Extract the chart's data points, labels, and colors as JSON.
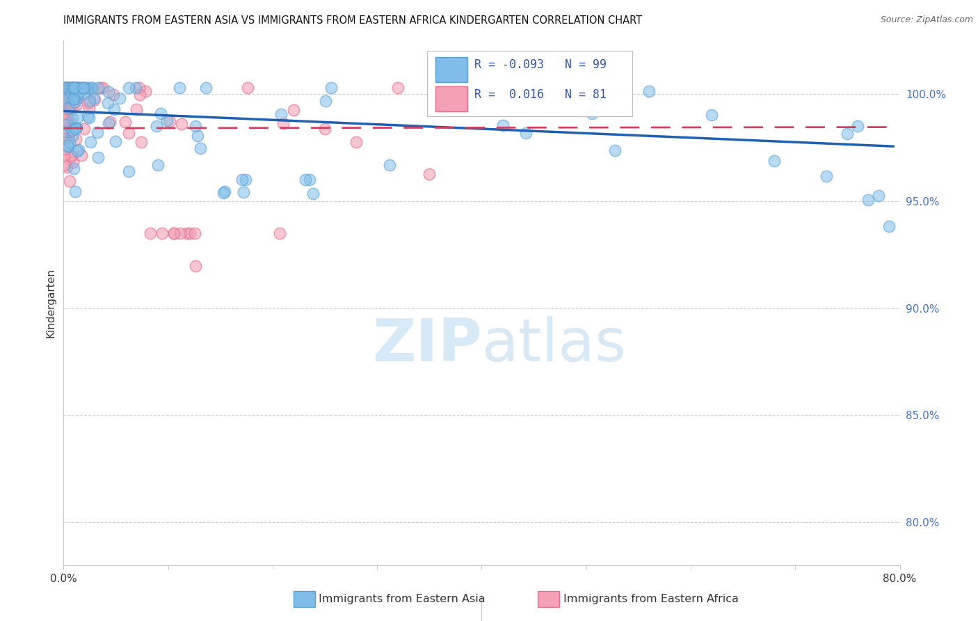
{
  "title": "IMMIGRANTS FROM EASTERN ASIA VS IMMIGRANTS FROM EASTERN AFRICA KINDERGARTEN CORRELATION CHART",
  "source": "Source: ZipAtlas.com",
  "ylabel": "Kindergarten",
  "legend_blue_label": "Immigrants from Eastern Asia",
  "legend_pink_label": "Immigrants from Eastern Africa",
  "blue_color": "#7fbde8",
  "blue_edge_color": "#5a9fd4",
  "pink_color": "#f4a0b5",
  "pink_edge_color": "#e07090",
  "trend_blue_color": "#2060b0",
  "trend_pink_color": "#d04060",
  "watermark_color": "#d0e4f5",
  "xlim": [
    0.0,
    0.8
  ],
  "ylim": [
    0.78,
    1.025
  ],
  "grid_color": "#d0d0d0",
  "ytick_color": "#4472c4",
  "xtick_color": "#333333",
  "spine_color": "#cccccc",
  "title_fontsize": 10.5,
  "source_fontsize": 9,
  "tick_fontsize": 11,
  "ylabel_fontsize": 11,
  "legend_fontsize": 11.5
}
